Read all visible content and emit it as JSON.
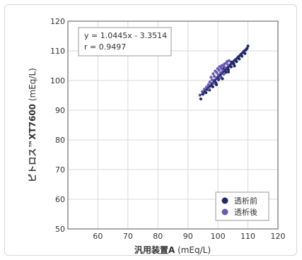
{
  "chart_data": {
    "type": "scatter",
    "xlabel_bold": "汎用装置A",
    "xlabel_unit": " (mEq/L)",
    "ylabel_bold": "ピトロス™XT7600",
    "ylabel_unit": " (mEq/L)",
    "xlim": [
      50,
      120
    ],
    "ylim": [
      50,
      120
    ],
    "xticks": [
      60,
      70,
      80,
      90,
      100,
      110,
      120
    ],
    "yticks": [
      50,
      60,
      70,
      80,
      90,
      100,
      110,
      120
    ],
    "annotation": {
      "equation": "y = 1.0445x - 3.3514",
      "r": "r = 0.9497"
    },
    "legend_position": "bottom-right",
    "regression": {
      "slope": 1.0445,
      "intercept": -3.3514,
      "x_range": [
        94,
        110
      ]
    },
    "series": [
      {
        "name": "透析前",
        "color": "#1f2a6b",
        "points": [
          [
            94.3,
            93.8
          ],
          [
            95.0,
            95.4
          ],
          [
            95.6,
            96.2
          ],
          [
            96.0,
            95.9
          ],
          [
            96.4,
            97.0
          ],
          [
            96.9,
            97.6
          ],
          [
            97.2,
            96.8
          ],
          [
            97.6,
            98.2
          ],
          [
            98.0,
            98.9
          ],
          [
            98.3,
            97.9
          ],
          [
            98.7,
            99.6
          ],
          [
            99.0,
            100.1
          ],
          [
            99.3,
            99.2
          ],
          [
            99.7,
            100.8
          ],
          [
            100.0,
            101.2
          ],
          [
            100.2,
            100.3
          ],
          [
            100.5,
            101.7
          ],
          [
            100.8,
            102.0
          ],
          [
            101.0,
            101.1
          ],
          [
            101.3,
            102.5
          ],
          [
            101.6,
            102.9
          ],
          [
            101.9,
            102.2
          ],
          [
            102.2,
            103.3
          ],
          [
            102.5,
            103.6
          ],
          [
            102.7,
            102.8
          ],
          [
            103.0,
            104.1
          ],
          [
            103.3,
            104.4
          ],
          [
            103.5,
            103.6
          ],
          [
            103.8,
            104.9
          ],
          [
            104.1,
            105.3
          ],
          [
            104.4,
            104.6
          ],
          [
            104.7,
            105.8
          ],
          [
            105.0,
            106.3
          ],
          [
            105.3,
            105.6
          ],
          [
            105.6,
            106.8
          ],
          [
            105.9,
            107.1
          ],
          [
            106.2,
            106.4
          ],
          [
            106.5,
            107.6
          ],
          [
            106.8,
            108.0
          ],
          [
            107.1,
            107.3
          ],
          [
            107.4,
            108.5
          ],
          [
            107.7,
            108.9
          ],
          [
            108.0,
            108.2
          ],
          [
            108.3,
            109.4
          ],
          [
            108.7,
            109.9
          ],
          [
            109.0,
            109.1
          ],
          [
            109.3,
            110.3
          ],
          [
            109.7,
            110.8
          ],
          [
            110.0,
            111.6
          ],
          [
            99.5,
            98.6
          ],
          [
            101.5,
            100.6
          ],
          [
            103.5,
            102.9
          ],
          [
            105.5,
            104.9
          ],
          [
            102.0,
            104.0
          ],
          [
            104.5,
            106.2
          ]
        ]
      },
      {
        "name": "透析後",
        "color": "#6a5bb3",
        "points": [
          [
            94.0,
            95.1
          ],
          [
            94.8,
            96.3
          ],
          [
            95.5,
            97.1
          ],
          [
            96.2,
            97.8
          ],
          [
            96.8,
            98.6
          ],
          [
            97.3,
            99.5
          ],
          [
            97.7,
            101.1
          ],
          [
            98.1,
            100.2
          ],
          [
            98.4,
            102.3
          ],
          [
            98.8,
            101.4
          ],
          [
            99.1,
            103.2
          ],
          [
            99.4,
            100.6
          ],
          [
            99.6,
            102.7
          ],
          [
            99.9,
            104.0
          ],
          [
            100.1,
            101.9
          ],
          [
            100.4,
            103.5
          ],
          [
            100.6,
            104.7
          ],
          [
            100.9,
            102.6
          ],
          [
            101.1,
            104.2
          ],
          [
            101.4,
            105.1
          ],
          [
            101.6,
            103.4
          ],
          [
            101.9,
            104.9
          ],
          [
            102.2,
            105.6
          ],
          [
            102.5,
            104.3
          ],
          [
            102.8,
            105.9
          ],
          [
            103.1,
            106.4
          ],
          [
            103.4,
            105.2
          ],
          [
            103.7,
            106.7
          ],
          [
            98.6,
            99.0
          ],
          [
            97.0,
            97.2
          ],
          [
            100.7,
            101.0
          ],
          [
            102.0,
            102.2
          ]
        ]
      }
    ]
  }
}
